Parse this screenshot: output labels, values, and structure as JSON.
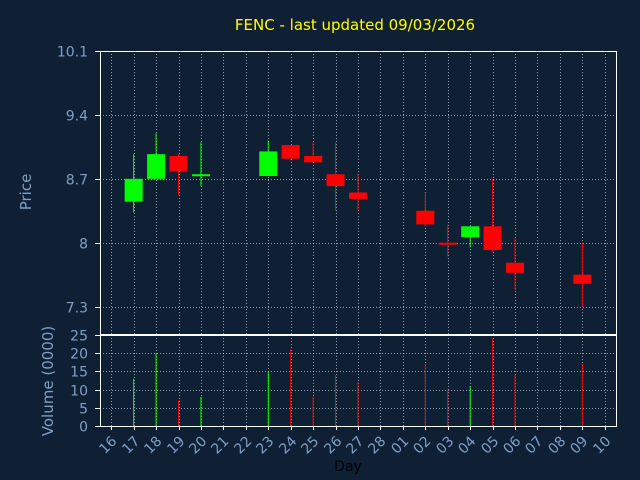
{
  "chart_data": {
    "type": "candlestick",
    "title": "FENC - last updated 09/03/2026",
    "xlabel": "Day",
    "price_panel": {
      "ylabel": "Price",
      "ylim": [
        7.0,
        10.1
      ],
      "yticks": [
        "10.1",
        "9.4",
        "8.7",
        "8",
        "7.3"
      ],
      "ytick_values": [
        10.1,
        9.4,
        8.7,
        8.0,
        7.3
      ]
    },
    "volume_panel": {
      "ylabel": "Volume (0000)",
      "ylim": [
        0,
        25
      ],
      "yticks": [
        "25",
        "20",
        "15",
        "10",
        "5",
        "0"
      ],
      "ytick_values": [
        25,
        20,
        15,
        10,
        5,
        0
      ]
    },
    "x_ticks": [
      "16",
      "17",
      "18",
      "19",
      "20",
      "21",
      "22",
      "23",
      "24",
      "25",
      "26",
      "27",
      "28",
      "01",
      "02",
      "03",
      "04",
      "05",
      "06",
      "07",
      "08",
      "09",
      "10"
    ],
    "candles": [
      {
        "day": "17",
        "open": 8.45,
        "close": 8.7,
        "high": 8.97,
        "low": 8.33,
        "volume": 13
      },
      {
        "day": "18",
        "open": 8.7,
        "close": 8.97,
        "high": 9.2,
        "low": 8.7,
        "volume": 20
      },
      {
        "day": "19",
        "open": 8.95,
        "close": 8.78,
        "high": 8.97,
        "low": 8.52,
        "volume": 7
      },
      {
        "day": "20",
        "open": 8.73,
        "close": 8.75,
        "high": 9.1,
        "low": 8.62,
        "volume": 8
      },
      {
        "day": "23",
        "open": 8.73,
        "close": 9.0,
        "high": 9.12,
        "low": 8.73,
        "volume": 15
      },
      {
        "day": "24",
        "open": 9.07,
        "close": 8.92,
        "high": 9.07,
        "low": 8.9,
        "volume": 21
      },
      {
        "day": "25",
        "open": 8.95,
        "close": 8.88,
        "high": 9.1,
        "low": 8.88,
        "volume": 8
      },
      {
        "day": "26",
        "open": 8.75,
        "close": 8.62,
        "high": 9.1,
        "low": 8.35,
        "volume": 14
      },
      {
        "day": "27",
        "open": 8.55,
        "close": 8.48,
        "high": 8.75,
        "low": 8.35,
        "volume": 12
      },
      {
        "day": "02",
        "open": 8.35,
        "close": 8.2,
        "high": 8.55,
        "low": 8.18,
        "volume": 17
      },
      {
        "day": "03",
        "open": 8.0,
        "close": 7.98,
        "high": 8.2,
        "low": 7.85,
        "volume": 10
      },
      {
        "day": "04",
        "open": 8.06,
        "close": 8.18,
        "high": 8.18,
        "low": 7.95,
        "volume": 11
      },
      {
        "day": "05",
        "open": 8.18,
        "close": 7.92,
        "high": 8.7,
        "low": 7.9,
        "volume": 24
      },
      {
        "day": "06",
        "open": 7.78,
        "close": 7.67,
        "high": 8.05,
        "low": 7.48,
        "volume": 14
      },
      {
        "day": "09",
        "open": 7.65,
        "close": 7.55,
        "high": 8.0,
        "low": 7.3,
        "volume": 17
      }
    ],
    "colors": {
      "background": "#102034",
      "up": "#00ff00",
      "down": "#ff0000",
      "title": "#ffff00",
      "axis_text": "#7f9fc6",
      "axis_lines": "#ffffff",
      "grid": "#ffffff"
    },
    "grid": true
  }
}
